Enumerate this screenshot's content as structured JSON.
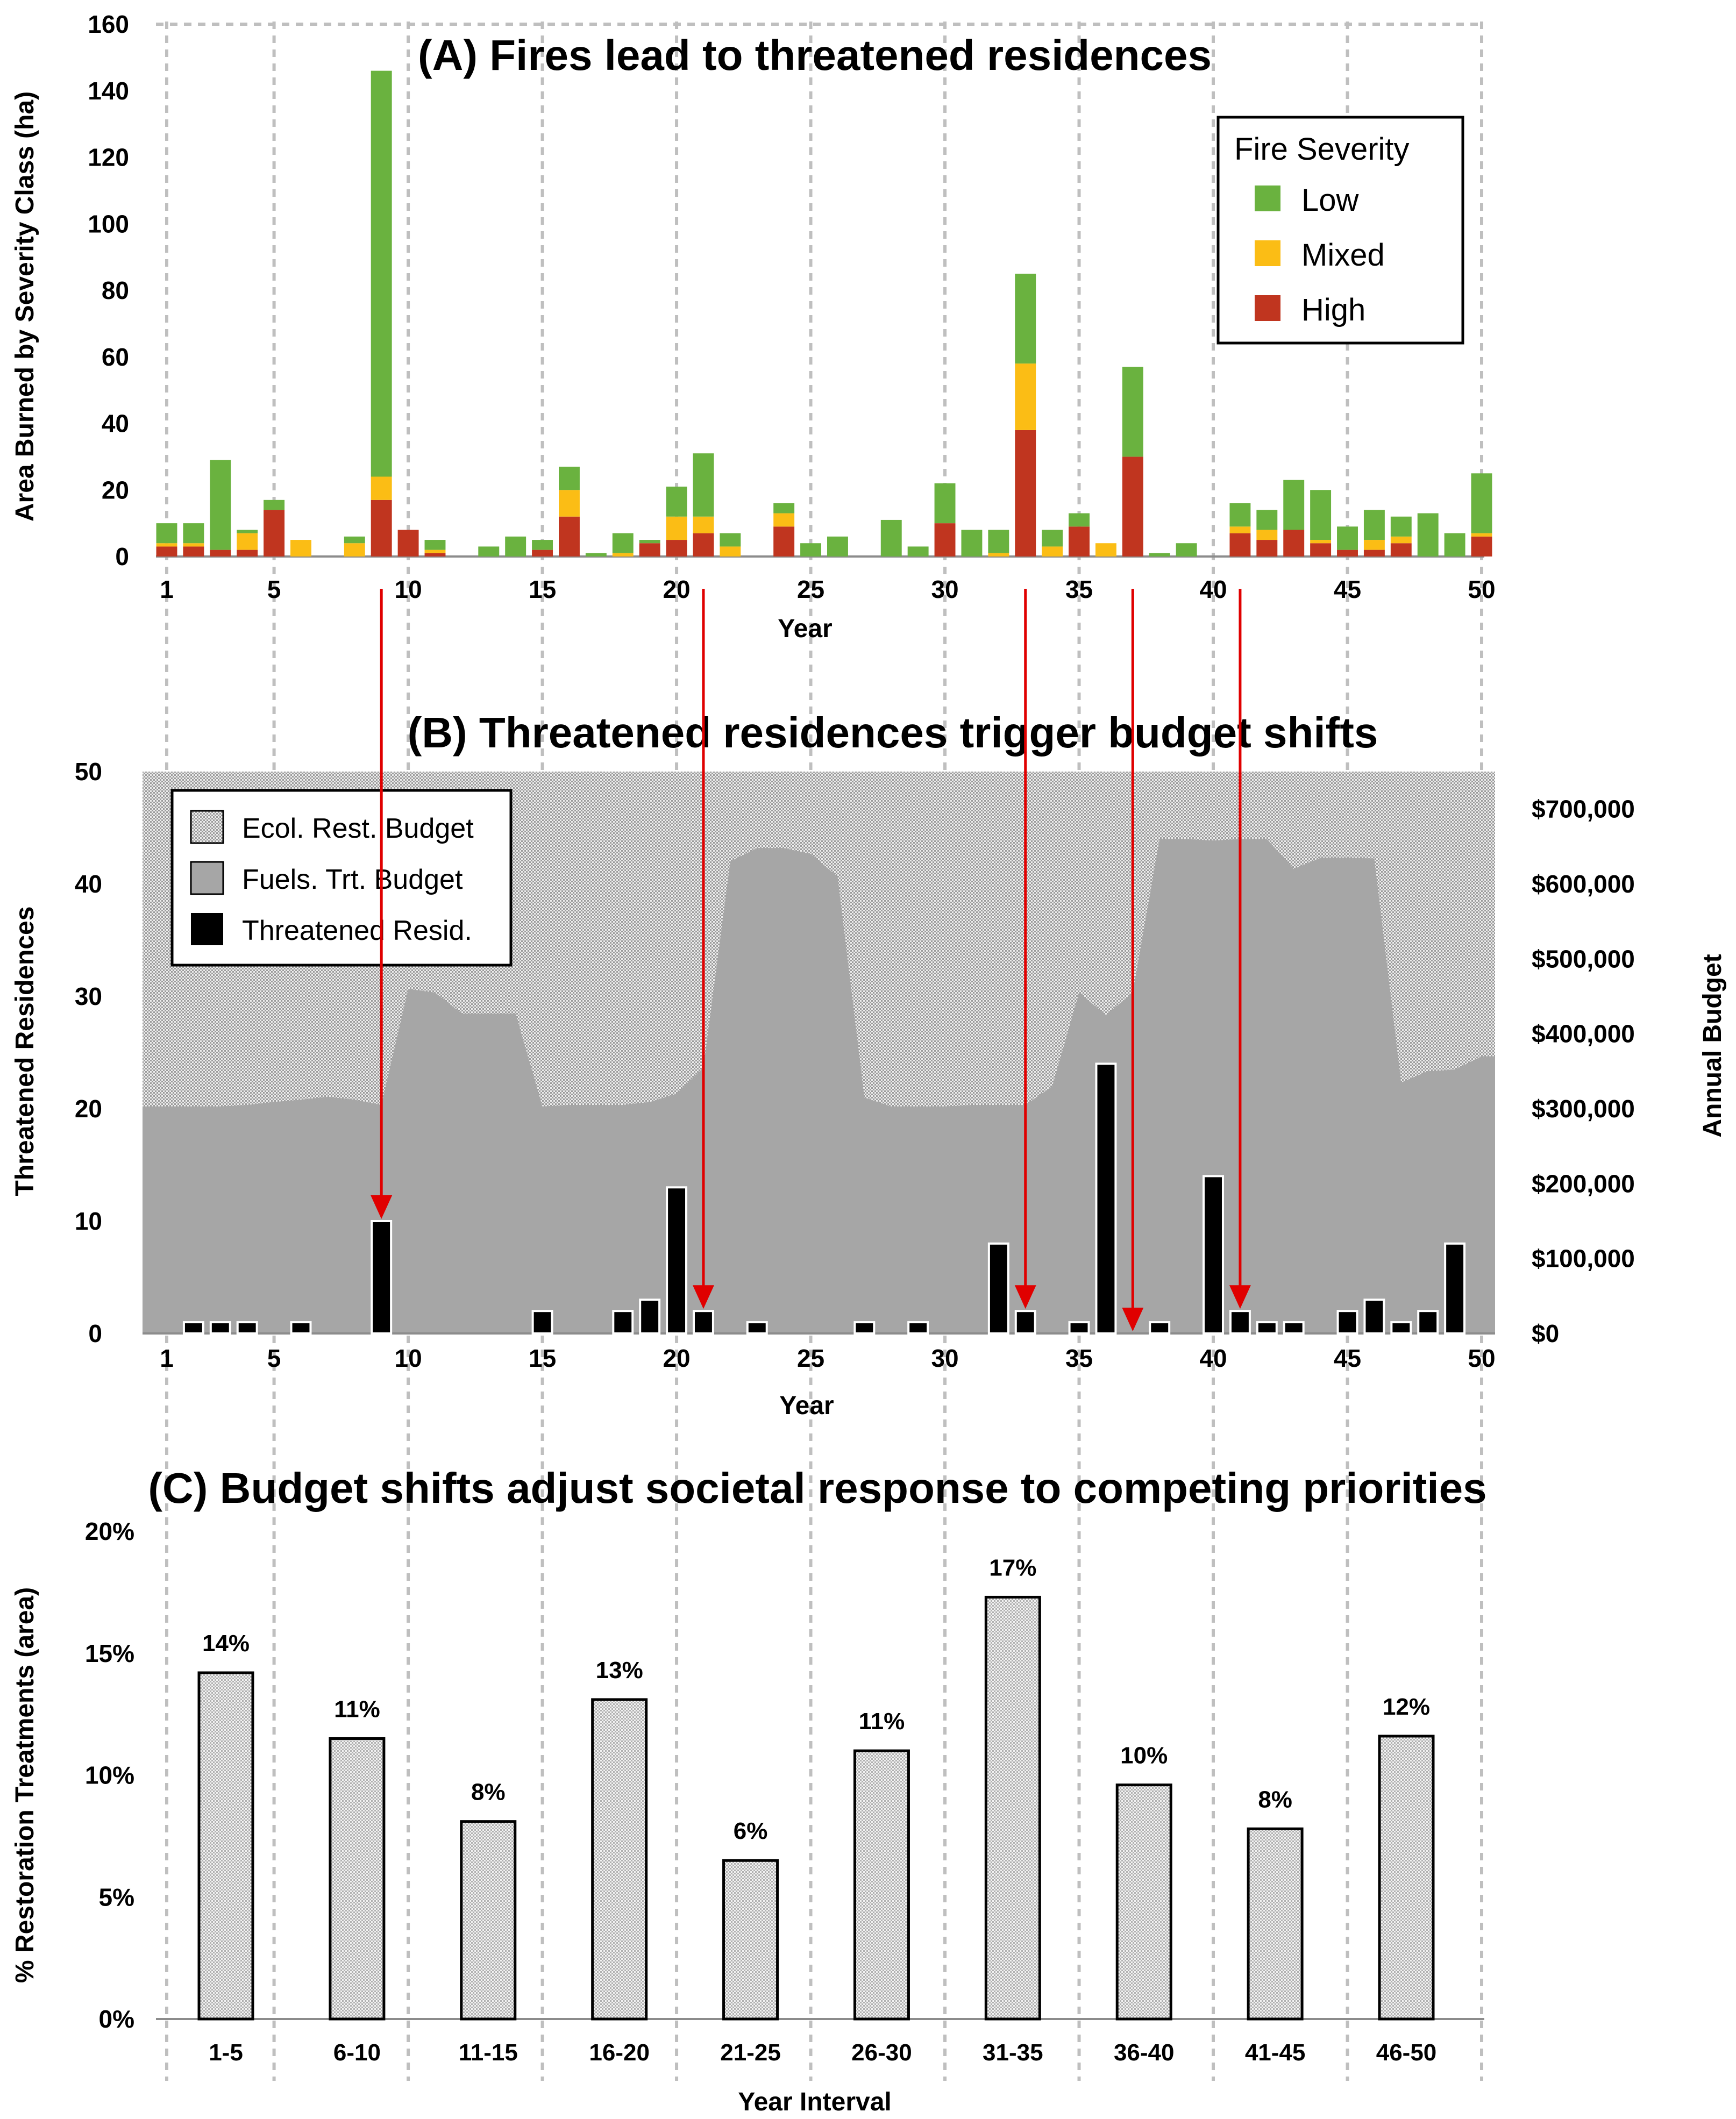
{
  "colors": {
    "low": "#6ab23f",
    "mixed": "#fbbd15",
    "high": "#c0351f",
    "fuels": "#a6a6a6",
    "threatened": "#000000",
    "arrow": "#e00000",
    "grid": "#bfbfbf"
  },
  "chart_data": [
    {
      "type": "bar",
      "stacked": true,
      "title": "(A) Fires lead to threatened residences",
      "xlabel": "Year",
      "ylabel": "Area Burned by Severity Class (ha)",
      "ylim": [
        0,
        160
      ],
      "yticks": [
        "0",
        "20",
        "40",
        "60",
        "80",
        "100",
        "120",
        "140",
        "160"
      ],
      "xticks": [
        "1",
        "5",
        "10",
        "15",
        "20",
        "25",
        "30",
        "35",
        "40",
        "45",
        "50"
      ],
      "legend": {
        "title": "Fire Severity",
        "position": "top-right",
        "entries": [
          "Low",
          "Mixed",
          "High"
        ]
      },
      "x": [
        1,
        2,
        3,
        4,
        5,
        6,
        7,
        8,
        9,
        10,
        11,
        12,
        13,
        14,
        15,
        16,
        17,
        18,
        19,
        20,
        21,
        22,
        23,
        24,
        25,
        26,
        27,
        28,
        29,
        30,
        31,
        32,
        33,
        34,
        35,
        36,
        37,
        38,
        39,
        40,
        41,
        42,
        43,
        44,
        45,
        46,
        47,
        48,
        49,
        50
      ],
      "series": [
        {
          "name": "High",
          "values": [
            3,
            3,
            2,
            2,
            14,
            0,
            0,
            0,
            17,
            8,
            1,
            0,
            0,
            0,
            2,
            12,
            0,
            0,
            4,
            5,
            7,
            0,
            0,
            9,
            0,
            0,
            0,
            0,
            0,
            10,
            0,
            0,
            38,
            0,
            9,
            0,
            30,
            0,
            0,
            0,
            7,
            5,
            8,
            4,
            2,
            2,
            4,
            0,
            0,
            6
          ]
        },
        {
          "name": "Mixed",
          "values": [
            1,
            1,
            0,
            5,
            0,
            5,
            0,
            4,
            7,
            0,
            1,
            0,
            0,
            0,
            0,
            8,
            0,
            1,
            0,
            7,
            5,
            3,
            0,
            4,
            0,
            0,
            0,
            0,
            0,
            0,
            0,
            1,
            20,
            3,
            0,
            4,
            0,
            0,
            0,
            0,
            2,
            3,
            0,
            1,
            0,
            3,
            2,
            0,
            0,
            1
          ]
        },
        {
          "name": "Low",
          "values": [
            6,
            6,
            27,
            1,
            3,
            0,
            0,
            2,
            122,
            0,
            3,
            0,
            3,
            6,
            3,
            7,
            1,
            6,
            1,
            9,
            19,
            4,
            0,
            3,
            4,
            6,
            0,
            11,
            3,
            12,
            8,
            7,
            27,
            5,
            4,
            0,
            27,
            1,
            4,
            0,
            7,
            6,
            15,
            15,
            7,
            9,
            6,
            13,
            7,
            18
          ]
        }
      ]
    },
    {
      "type": "area+bar",
      "title": "(B) Threatened residences trigger budget shifts",
      "xlabel": "Year",
      "ylabel": "Threatened Residences",
      "y2label": "Annual Budget",
      "ylim": [
        0,
        50
      ],
      "y2lim": [
        0,
        750000
      ],
      "yticks": [
        "0",
        "10",
        "20",
        "30",
        "40",
        "50"
      ],
      "y2ticks": [
        "$0",
        "$100,000",
        "$200,000",
        "$300,000",
        "$400,000",
        "$500,000",
        "$600,000",
        "$700,000"
      ],
      "xticks": [
        "1",
        "5",
        "10",
        "15",
        "20",
        "25",
        "30",
        "35",
        "40",
        "45",
        "50"
      ],
      "legend": {
        "position": "top-left",
        "entries": [
          "Ecol. Rest. Budget",
          "Fuels. Trt.  Budget",
          "Threatened Resid."
        ]
      },
      "total_budget": 750000,
      "x": [
        1,
        2,
        3,
        4,
        5,
        6,
        7,
        8,
        9,
        10,
        11,
        12,
        13,
        14,
        15,
        16,
        17,
        18,
        19,
        20,
        21,
        22,
        23,
        24,
        25,
        26,
        27,
        28,
        29,
        30,
        31,
        32,
        33,
        34,
        35,
        36,
        37,
        38,
        39,
        40,
        41,
        42,
        43,
        44,
        45,
        46,
        47,
        48,
        49,
        50
      ],
      "fuels_budget": [
        303000,
        303000,
        303000,
        305000,
        309000,
        312000,
        316000,
        312000,
        305000,
        460000,
        455000,
        427000,
        427000,
        427000,
        303000,
        305000,
        305000,
        305000,
        309000,
        320000,
        355000,
        630000,
        648000,
        648000,
        640000,
        610000,
        315000,
        303000,
        303000,
        303000,
        305000,
        305000,
        305000,
        330000,
        455000,
        425000,
        455000,
        660000,
        660000,
        658000,
        660000,
        660000,
        620000,
        635000,
        635000,
        634000,
        335000,
        350000,
        352000,
        370000
      ],
      "threatened_residences": [
        0,
        1,
        1,
        1,
        0,
        1,
        0,
        0,
        10,
        0,
        0,
        0,
        0,
        0,
        2,
        0,
        0,
        2,
        3,
        13,
        2,
        0,
        1,
        0,
        0,
        0,
        1,
        0,
        1,
        0,
        0,
        8,
        2,
        0,
        1,
        24,
        0,
        1,
        0,
        14,
        2,
        1,
        1,
        0,
        2,
        3,
        1,
        2,
        8,
        0
      ],
      "arrow_years": [
        9,
        21,
        33,
        37,
        41
      ]
    },
    {
      "type": "bar",
      "title": "(C) Budget shifts adjust societal response to competing priorities",
      "xlabel": "Year Interval",
      "ylabel": "% Restoration Treatments (area)",
      "ylim": [
        0,
        20
      ],
      "yticks": [
        "0%",
        "5%",
        "10%",
        "15%",
        "20%"
      ],
      "categories": [
        "1-5",
        "6-10",
        "11-15",
        "16-20",
        "21-25",
        "26-30",
        "31-35",
        "36-40",
        "41-45",
        "46-50"
      ],
      "values": [
        14.2,
        11.5,
        8.1,
        13.1,
        6.5,
        11.0,
        17.3,
        9.6,
        7.8,
        11.6
      ],
      "labels": [
        "14%",
        "11%",
        "8%",
        "13%",
        "6%",
        "11%",
        "17%",
        "10%",
        "8%",
        "12%"
      ]
    }
  ]
}
